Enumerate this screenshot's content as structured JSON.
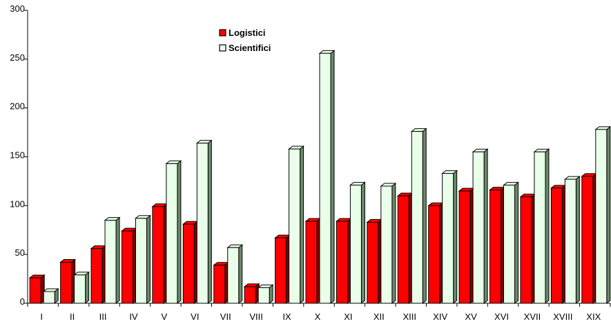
{
  "chart_data": {
    "type": "bar",
    "variant": "3d-clustered",
    "categories": [
      "I",
      "II",
      "III",
      "IV",
      "V",
      "VI",
      "VII",
      "VIII",
      "IX",
      "X",
      "XI",
      "XII",
      "XIII",
      "XIV",
      "XV",
      "XVI",
      "XVII",
      "XVIII",
      "XIX"
    ],
    "series": [
      {
        "name": "Logistici",
        "color": "#ff0000",
        "side_color": "#7a0000",
        "values": [
          26,
          42,
          56,
          74,
          99,
          81,
          39,
          17,
          67,
          84,
          84,
          83,
          110,
          100,
          115,
          116,
          109,
          118,
          130
        ]
      },
      {
        "name": "Scientifici",
        "color": "#eaffea",
        "side_color": "#6a8a6a",
        "values": [
          12,
          29,
          85,
          87,
          143,
          164,
          57,
          16,
          158,
          256,
          121,
          120,
          176,
          133,
          155,
          121,
          155,
          127,
          178
        ]
      }
    ],
    "yticks": [
      "0",
      "50",
      "100",
      "150",
      "200",
      "250",
      "300"
    ],
    "ylim": [
      0,
      300
    ],
    "grid": false,
    "legend_position": "top-center",
    "title": "",
    "xlabel": "",
    "ylabel": ""
  }
}
